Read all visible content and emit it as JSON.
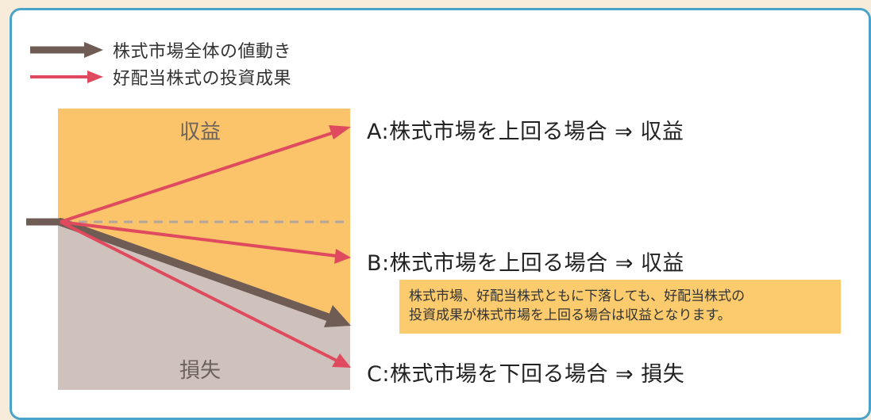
{
  "legend": {
    "market": "株式市場全体の値動き",
    "dividend": "好配当株式の投資成果"
  },
  "zones": {
    "profit": "収益",
    "loss": "損失"
  },
  "scenarios": {
    "a": "A:株式市場を上回る場合 ⇒ 収益",
    "b": "B:株式市場を上回る場合 ⇒ 収益",
    "c": "C:株式市場を下回る場合 ⇒ 損失"
  },
  "note": {
    "line1": "株式市場、好配当株式ともに下落しても、好配当株式の",
    "line2": "投資成果が株式市場を上回る場合は収益となります。"
  },
  "colors": {
    "profit_zone": "#fbc46b",
    "loss_zone": "#cfc2bc",
    "market_arrow": "#6e5c55",
    "dividend_arrow": "#e04a5f",
    "note_bg": "#fbcb6d",
    "border": "#4aa3c9"
  }
}
